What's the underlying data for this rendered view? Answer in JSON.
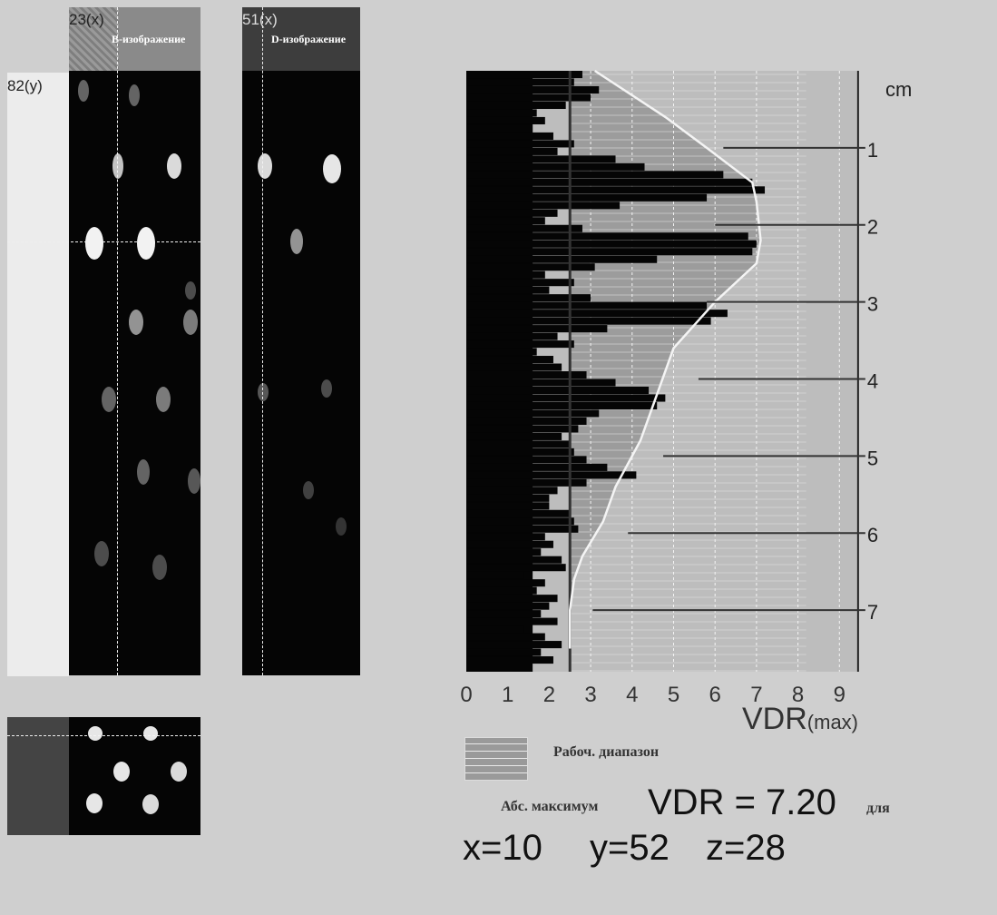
{
  "b_image": {
    "title": "B-изображение",
    "x_marker": "23(x)",
    "y_marker": "82(y)"
  },
  "d_image": {
    "title": "D-изображение",
    "marker": "51(x)"
  },
  "legend": {
    "working_range": "Рабоч. диапазон"
  },
  "result": {
    "abs_max_label": "Абс. максимум",
    "vdr_value": "VDR = 7.20",
    "for_label": "для",
    "x": "x=10",
    "y": "y=52",
    "z": "z=28"
  },
  "chart_data": {
    "type": "bar",
    "orientation": "horizontal",
    "xlabel": "VDR",
    "xlabel_suffix": "(max)",
    "xlim": [
      0,
      9
    ],
    "x_ticks": [
      "0",
      "1",
      "2",
      "3",
      "4",
      "5",
      "6",
      "7",
      "8",
      "9"
    ],
    "ylabel": "cm",
    "ylim": [
      0,
      7.8
    ],
    "y_ticks": [
      "1",
      "2",
      "3",
      "4",
      "5",
      "6",
      "7"
    ],
    "working_range_min": 2.5,
    "depth_rows": [
      0.05,
      0.15,
      0.25,
      0.35,
      0.45,
      0.55,
      0.65,
      0.75,
      0.85,
      0.95,
      1.05,
      1.15,
      1.25,
      1.35,
      1.45,
      1.55,
      1.65,
      1.75,
      1.85,
      1.95,
      2.05,
      2.15,
      2.25,
      2.35,
      2.45,
      2.55,
      2.65,
      2.75,
      2.85,
      2.95,
      3.05,
      3.15,
      3.25,
      3.35,
      3.45,
      3.55,
      3.65,
      3.75,
      3.85,
      3.95,
      4.05,
      4.15,
      4.25,
      4.35,
      4.45,
      4.55,
      4.65,
      4.75,
      4.85,
      4.95,
      5.05,
      5.15,
      5.25,
      5.35,
      5.45,
      5.55,
      5.65,
      5.75,
      5.85,
      5.95,
      6.05,
      6.15,
      6.25,
      6.35,
      6.45,
      6.55,
      6.65,
      6.75,
      6.85,
      6.95,
      7.05,
      7.15,
      7.25,
      7.35,
      7.45,
      7.55,
      7.65
    ],
    "values": [
      2.8,
      2.6,
      3.2,
      3.0,
      2.4,
      1.7,
      1.9,
      1.6,
      2.1,
      2.6,
      2.2,
      3.6,
      4.3,
      6.2,
      6.9,
      7.2,
      5.8,
      3.7,
      2.2,
      1.9,
      2.8,
      6.8,
      7.0,
      6.9,
      4.6,
      3.1,
      1.9,
      2.6,
      2.0,
      3.0,
      5.8,
      6.3,
      5.9,
      3.4,
      2.2,
      2.6,
      1.7,
      2.1,
      2.3,
      2.9,
      3.6,
      4.4,
      4.8,
      4.6,
      3.2,
      2.9,
      2.7,
      2.3,
      2.5,
      2.6,
      2.9,
      3.4,
      4.1,
      2.9,
      2.2,
      2.0,
      2.0,
      2.5,
      2.6,
      2.7,
      1.9,
      2.1,
      1.8,
      2.3,
      2.4,
      1.4,
      1.9,
      1.7,
      2.2,
      2.0,
      1.8,
      2.2,
      1.4,
      1.9,
      2.3,
      1.8,
      2.1
    ],
    "envelope_depth": [
      0.0,
      0.6,
      1.0,
      1.45,
      1.7,
      2.2,
      2.5,
      3.0,
      3.6,
      4.2,
      4.8,
      5.4,
      5.85,
      6.3,
      6.6,
      7.0,
      7.5
    ],
    "envelope_vdr": [
      3.1,
      4.8,
      5.8,
      6.9,
      7.0,
      7.1,
      7.0,
      6.0,
      5.0,
      4.6,
      4.2,
      3.6,
      3.3,
      2.8,
      2.6,
      2.5,
      2.5
    ]
  }
}
